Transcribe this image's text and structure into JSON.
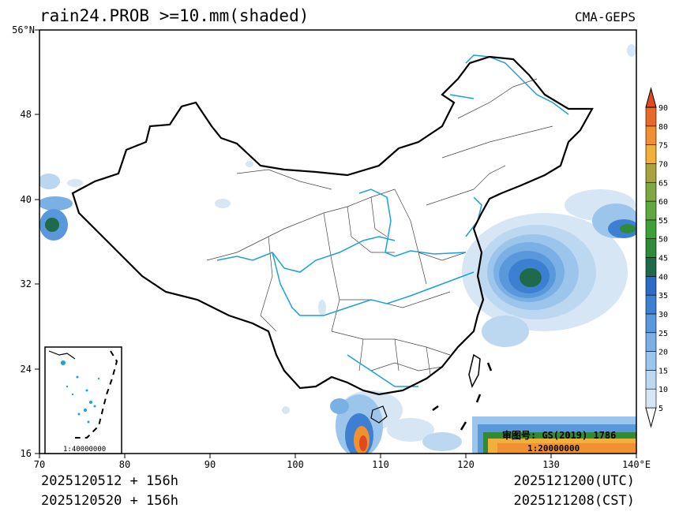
{
  "header": {
    "title": "rain24.PROB >=10.mm(shaded)",
    "model": "CMA-GEPS"
  },
  "footer": {
    "init_utc": "2025120512 + 156h",
    "init_cst": "2025120520 + 156h",
    "valid_utc": "2025121200(UTC)",
    "valid_cst": "2025121208(CST)"
  },
  "map": {
    "lat_ticks": [
      "56°N",
      "48",
      "40",
      "32",
      "24",
      "16"
    ],
    "lon_ticks": [
      "70",
      "80",
      "90",
      "100",
      "110",
      "120",
      "130",
      "140°E"
    ],
    "approval": "审图号: GS(2019) 1786",
    "scale_main": "1:20000000",
    "scale_inset": "1:40000000"
  },
  "legend": {
    "levels": [
      "5",
      "10",
      "15",
      "20",
      "25",
      "30",
      "35",
      "40",
      "45",
      "50",
      "55",
      "60",
      "65",
      "70",
      "75",
      "80",
      "90"
    ],
    "colors": [
      "#ffffff",
      "#d6e6f5",
      "#bcd7f0",
      "#9cc5eb",
      "#7ab0e4",
      "#5a98dc",
      "#3d80d2",
      "#2a6cc6",
      "#1e6a4a",
      "#2f8a3a",
      "#3fa03a",
      "#5ea83d",
      "#7fa845",
      "#a8a240",
      "#f0b03a",
      "#f09030",
      "#e86a28",
      "#e04a20"
    ]
  },
  "colors": {
    "china_border": "#000000",
    "province_border": "#333333",
    "rivers": "#1aa0e0"
  }
}
